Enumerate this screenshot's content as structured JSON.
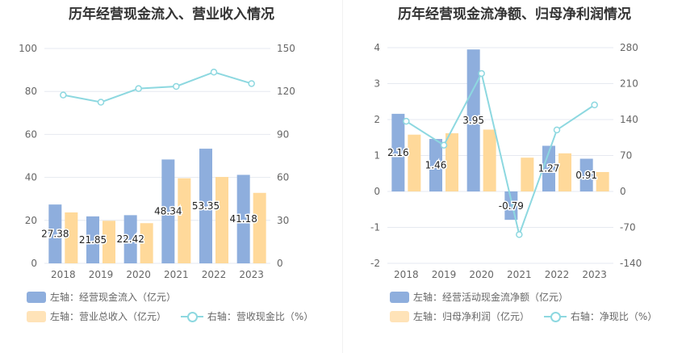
{
  "colors": {
    "blue": "#8eaedd",
    "orange": "#ffd99a",
    "cyan": "#8dd8e0",
    "axis_text": "#666666",
    "grid": "#e6e9f0"
  },
  "chart_data": [
    {
      "type": "bar",
      "title": "历年经营现金流入、营业收入情况",
      "categories": [
        "2018",
        "2019",
        "2020",
        "2021",
        "2022",
        "2023"
      ],
      "left_axis": {
        "ticks": [
          "0",
          "20",
          "40",
          "60",
          "80",
          "100"
        ],
        "ylim": [
          0,
          100
        ]
      },
      "right_axis": {
        "ticks": [
          "0",
          "30",
          "60",
          "90",
          "120",
          "150"
        ],
        "ylim": [
          0,
          150
        ]
      },
      "series": [
        {
          "name": "左轴：经营现金流入（亿元）",
          "kind": "bar",
          "axis": "left",
          "values": [
            27.38,
            21.85,
            22.42,
            48.34,
            53.35,
            41.18
          ],
          "labels": [
            "27.38",
            "21.85",
            "22.42",
            "48.34",
            "53.35",
            "41.18"
          ]
        },
        {
          "name": "左轴：营业总收入（亿元）",
          "kind": "bar",
          "axis": "left",
          "values": [
            23.7,
            19.8,
            18.7,
            39.6,
            40.2,
            32.8
          ]
        },
        {
          "name": "右轴：营收现金比（%）",
          "kind": "line",
          "axis": "right",
          "values": [
            117.5,
            112.5,
            122.0,
            123.5,
            133.5,
            125.5
          ]
        }
      ],
      "legend_rows": [
        [
          "左轴：经营现金流入（亿元）"
        ],
        [
          "左轴：营业总收入（亿元）",
          "右轴：营收现金比（%）"
        ]
      ]
    },
    {
      "type": "bar",
      "title": "历年经营现金流净额、归母净利润情况",
      "categories": [
        "2018",
        "2019",
        "2020",
        "2021",
        "2022",
        "2023"
      ],
      "left_axis": {
        "ticks": [
          "-2",
          "-1",
          "0",
          "1",
          "2",
          "3",
          "4"
        ],
        "ylim": [
          -2,
          4
        ]
      },
      "right_axis": {
        "ticks": [
          "-140",
          "-70",
          "0",
          "70",
          "140",
          "210",
          "280"
        ],
        "ylim": [
          -140,
          280
        ]
      },
      "series": [
        {
          "name": "左轴：经营活动现金流净额（亿元）",
          "kind": "bar",
          "axis": "left",
          "values": [
            2.16,
            1.46,
            3.95,
            -0.79,
            1.27,
            0.91
          ],
          "labels": [
            "2.16",
            "1.46",
            "3.95",
            "-0.79",
            "1.27",
            "0.91"
          ]
        },
        {
          "name": "左轴：归母净利润（亿元）",
          "kind": "bar",
          "axis": "left",
          "values": [
            1.58,
            1.62,
            1.72,
            0.94,
            1.06,
            0.54
          ]
        },
        {
          "name": "右轴：净现比（%）",
          "kind": "line",
          "axis": "right",
          "values": [
            136.7,
            90.1,
            229.7,
            -84.0,
            119.8,
            168.5
          ]
        }
      ],
      "legend_rows": [
        [
          "左轴：经营活动现金流净额（亿元）"
        ],
        [
          "左轴：归母净利润（亿元）",
          "右轴：净现比（%）"
        ]
      ]
    }
  ]
}
